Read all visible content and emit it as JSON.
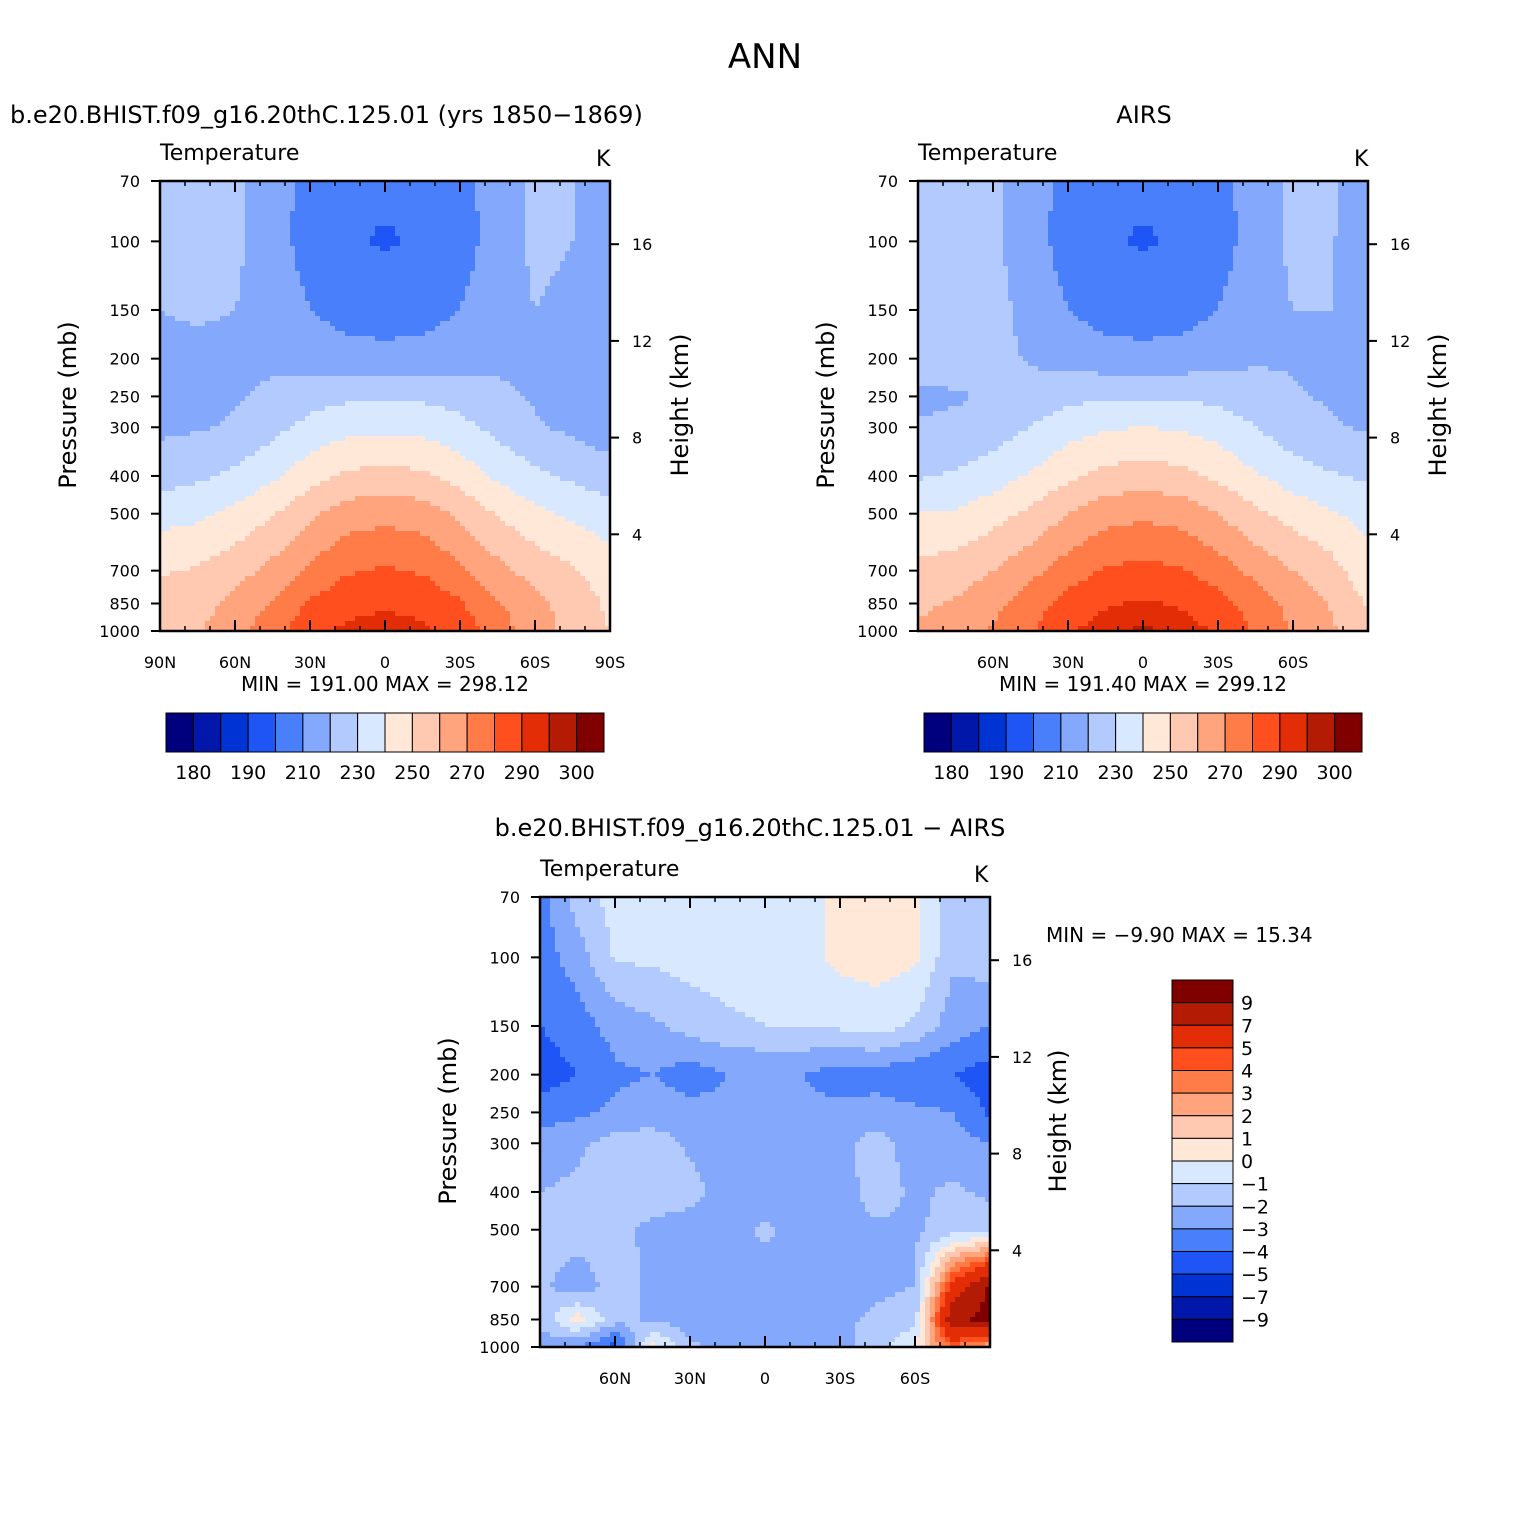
{
  "figure": {
    "title": "ANN"
  },
  "panels": [
    {
      "id": "model",
      "title": "b.e20.BHIST.f09_g16.20thC.125.01  (yrs  1850−1869)",
      "field_label": "Temperature",
      "units_label": "K",
      "y_label": "Pressure  (mb)",
      "y2_label": "Height  (km)",
      "minmax_text": "MIN  =  191.00    MAX  =  298.12"
    },
    {
      "id": "obs",
      "title": "AIRS",
      "field_label": "Temperature",
      "units_label": "K",
      "y_label": "Pressure  (mb)",
      "y2_label": "Height  (km)",
      "minmax_text": "MIN  =  191.40    MAX  =  299.12"
    },
    {
      "id": "diff",
      "title": "b.e20.BHIST.f09_g16.20thC.125.01  −  AIRS",
      "field_label": "Temperature",
      "units_label": "K",
      "y_label": "Pressure  (mb)",
      "y2_label": "Height  (km)",
      "minmax_text": "MIN  =    −9.90    MAX  =    15.34"
    }
  ],
  "chart_data": [
    {
      "type": "heatmap",
      "title": "b.e20.BHIST.f09_g16.20thC.125.01  (yrs  1850−1869)",
      "xlabel": "",
      "ylabel": "Pressure  (mb)",
      "y2label": "Height  (km)",
      "xlim": [
        90,
        -90
      ],
      "x_ticks": [
        90,
        60,
        30,
        0,
        -30,
        -60,
        -90
      ],
      "x_tick_labels": [
        "90N",
        "60N",
        "30N",
        "0",
        "30S",
        "60S",
        "90S"
      ],
      "ylim": [
        1000,
        70
      ],
      "y_scale": "log",
      "y_ticks": [
        70,
        100,
        150,
        200,
        250,
        300,
        400,
        500,
        700,
        850,
        1000
      ],
      "y2_ticks": [
        4,
        8,
        12,
        16
      ],
      "units": "K",
      "contour_levels": [
        180,
        185,
        190,
        200,
        210,
        220,
        230,
        240,
        250,
        260,
        270,
        280,
        290,
        295,
        300
      ],
      "min": 191.0,
      "max": 298.12,
      "colorbar_labels": [
        "180",
        "190",
        "210",
        "230",
        "250",
        "270",
        "290",
        "300"
      ],
      "colors": [
        "#00007f",
        "#0017a9",
        "#0033d4",
        "#1f55f5",
        "#4a7ffb",
        "#84a8fb",
        "#b3caff",
        "#d8e8ff",
        "#ffe8d8",
        "#ffc8b0",
        "#ffa47c",
        "#ff7b48",
        "#ff4f1e",
        "#e32d06",
        "#b41b05",
        "#800000"
      ],
      "x_grid": [
        90,
        75,
        60,
        45,
        30,
        15,
        0,
        -15,
        -30,
        -45,
        -60,
        -75,
        -90
      ],
      "y_grid": [
        70,
        100,
        150,
        200,
        250,
        300,
        400,
        500,
        700,
        850,
        1000
      ],
      "z": [
        [
          222,
          222,
          222,
          214,
          207,
          203,
          202,
          203,
          207,
          214,
          222,
          220,
          212
        ],
        [
          222,
          222,
          222,
          214,
          206,
          201,
          199,
          201,
          206,
          214,
          222,
          220,
          212
        ],
        [
          220,
          221,
          220,
          216,
          210,
          206,
          205,
          206,
          210,
          216,
          220,
          218,
          212
        ],
        [
          218,
          218,
          218,
          218,
          216,
          214,
          213,
          214,
          216,
          218,
          218,
          216,
          212
        ],
        [
          217,
          218,
          219,
          222,
          226,
          228,
          228,
          228,
          226,
          222,
          219,
          216,
          212
        ],
        [
          218,
          219,
          221,
          227,
          233,
          237,
          238,
          237,
          233,
          227,
          221,
          218,
          214
        ],
        [
          226,
          228,
          232,
          238,
          246,
          252,
          253,
          252,
          246,
          238,
          232,
          228,
          225
        ],
        [
          236,
          238,
          243,
          249,
          258,
          265,
          267,
          265,
          258,
          249,
          243,
          238,
          234
        ],
        [
          249,
          251,
          256,
          263,
          272,
          279,
          281,
          279,
          272,
          263,
          256,
          251,
          245
        ],
        [
          254,
          256,
          263,
          271,
          281,
          287,
          289,
          287,
          281,
          271,
          263,
          256,
          248
        ],
        [
          256,
          259,
          266,
          276,
          287,
          292,
          293,
          292,
          286,
          275,
          264,
          257,
          250
        ]
      ]
    },
    {
      "type": "heatmap",
      "title": "AIRS",
      "xlabel": "",
      "ylabel": "Pressure  (mb)",
      "y2label": "Height  (km)",
      "xlim": [
        90,
        -90
      ],
      "x_ticks": [
        60,
        30,
        0,
        -30,
        -60
      ],
      "x_tick_labels": [
        "60N",
        "30N",
        "0",
        "30S",
        "60S"
      ],
      "ylim": [
        1000,
        70
      ],
      "y_scale": "log",
      "y_ticks": [
        70,
        100,
        150,
        200,
        250,
        300,
        400,
        500,
        700,
        850,
        1000
      ],
      "y2_ticks": [
        4,
        8,
        12,
        16
      ],
      "units": "K",
      "contour_levels": [
        180,
        185,
        190,
        200,
        210,
        220,
        230,
        240,
        250,
        260,
        270,
        280,
        290,
        295,
        300
      ],
      "min": 191.4,
      "max": 299.12,
      "colorbar_labels": [
        "180",
        "190",
        "210",
        "230",
        "250",
        "270",
        "290",
        "300"
      ],
      "colors": [
        "#00007f",
        "#0017a9",
        "#0033d4",
        "#1f55f5",
        "#4a7ffb",
        "#84a8fb",
        "#b3caff",
        "#d8e8ff",
        "#ffe8d8",
        "#ffc8b0",
        "#ffa47c",
        "#ff7b48",
        "#ff4f1e",
        "#e32d06",
        "#b41b05",
        "#800000"
      ],
      "x_grid": [
        90,
        75,
        60,
        45,
        30,
        15,
        0,
        -15,
        -30,
        -45,
        -60,
        -75,
        -90
      ],
      "y_grid": [
        70,
        100,
        150,
        200,
        250,
        300,
        400,
        500,
        700,
        850,
        1000
      ],
      "z": [
        [
          222,
          222,
          222,
          214,
          207,
          203,
          202,
          203,
          207,
          214,
          222,
          222,
          213
        ],
        [
          224,
          224,
          222,
          214,
          206,
          201,
          199,
          201,
          206,
          214,
          222,
          221,
          213
        ],
        [
          226,
          226,
          224,
          216,
          210,
          206,
          205,
          206,
          210,
          216,
          220,
          220,
          215
        ],
        [
          224,
          225,
          223,
          219,
          216,
          214,
          213,
          214,
          216,
          219,
          219,
          218,
          216
        ],
        [
          218,
          219,
          221,
          224,
          227,
          229,
          229,
          229,
          227,
          224,
          221,
          219,
          217
        ],
        [
          221,
          222,
          225,
          230,
          236,
          239,
          240,
          239,
          236,
          230,
          224,
          221,
          219
        ],
        [
          229,
          231,
          235,
          241,
          248,
          253,
          255,
          253,
          248,
          241,
          235,
          231,
          228
        ],
        [
          240,
          241,
          246,
          252,
          260,
          266,
          268,
          266,
          260,
          252,
          246,
          241,
          237
        ],
        [
          253,
          255,
          260,
          267,
          275,
          281,
          283,
          281,
          275,
          267,
          260,
          254,
          243
        ],
        [
          258,
          261,
          267,
          275,
          284,
          289,
          291,
          289,
          284,
          275,
          267,
          259,
          249
        ],
        [
          262,
          264,
          271,
          279,
          289,
          294,
          296,
          294,
          289,
          279,
          269,
          262,
          252
        ]
      ]
    },
    {
      "type": "heatmap",
      "title": "b.e20.BHIST.f09_g16.20thC.125.01  −  AIRS",
      "xlabel": "",
      "ylabel": "Pressure  (mb)",
      "y2label": "Height  (km)",
      "xlim": [
        90,
        -90
      ],
      "x_ticks": [
        60,
        30,
        0,
        -30,
        -60
      ],
      "x_tick_labels": [
        "60N",
        "30N",
        "0",
        "30S",
        "60S"
      ],
      "ylim": [
        1000,
        70
      ],
      "y_scale": "log",
      "y_ticks": [
        70,
        100,
        150,
        200,
        250,
        300,
        400,
        500,
        700,
        850,
        1000
      ],
      "y2_ticks": [
        4,
        8,
        12,
        16
      ],
      "units": "K",
      "contour_levels": [
        -9,
        -7,
        -5,
        -4,
        -3,
        -2,
        -1,
        0,
        1,
        2,
        3,
        4,
        5,
        7,
        9
      ],
      "min": -9.9,
      "max": 15.34,
      "colorbar_labels": [
        "9",
        "7",
        "5",
        "4",
        "3",
        "2",
        "1",
        "0",
        "−1",
        "−2",
        "−3",
        "−4",
        "−5",
        "−7",
        "−9"
      ],
      "colors": [
        "#00007f",
        "#0017a9",
        "#0033d4",
        "#1f55f5",
        "#4a7ffb",
        "#84a8fb",
        "#b3caff",
        "#d8e8ff",
        "#ffe8d8",
        "#ffc8b0",
        "#ffa47c",
        "#ff7b48",
        "#ff4f1e",
        "#e32d06",
        "#b41b05",
        "#800000"
      ],
      "x_grid": [
        90,
        75,
        60,
        45,
        30,
        15,
        0,
        -15,
        -30,
        -45,
        -60,
        -75,
        -90
      ],
      "y_grid": [
        70,
        100,
        150,
        200,
        250,
        300,
        400,
        500,
        700,
        850,
        1000
      ],
      "z": [
        [
          -3.5,
          -1.5,
          -0.6,
          -0.5,
          -0.5,
          -0.5,
          -0.5,
          -0.5,
          0.4,
          0.5,
          0.3,
          -1.5,
          -1.2
        ],
        [
          -3.5,
          -2.5,
          -0.9,
          -0.8,
          -0.6,
          -0.5,
          -0.5,
          -0.5,
          0.3,
          0.4,
          0.2,
          -1.8,
          -1.5
        ],
        [
          -4.0,
          -3.5,
          -2.6,
          -2.2,
          -1.6,
          -1.2,
          -1.0,
          -1.0,
          -0.8,
          -0.5,
          -1.2,
          -2.5,
          -3.0
        ],
        [
          -4.5,
          -4.0,
          -3.2,
          -3.0,
          -3.5,
          -3.0,
          -3.0,
          -3.0,
          -3.5,
          -3.5,
          -3.8,
          -4.0,
          -4.5
        ],
        [
          -3.5,
          -3.2,
          -2.8,
          -2.5,
          -2.6,
          -2.8,
          -2.8,
          -2.8,
          -2.7,
          -2.5,
          -2.8,
          -3.0,
          -4.2
        ],
        [
          -2.5,
          -2.2,
          -1.6,
          -1.5,
          -2.2,
          -2.6,
          -2.5,
          -2.6,
          -2.2,
          -1.6,
          -2.5,
          -2.6,
          -3.0
        ],
        [
          -2.0,
          -1.8,
          -1.5,
          -1.5,
          -1.6,
          -2.5,
          -2.6,
          -2.6,
          -2.5,
          -1.5,
          -2.2,
          -1.8,
          -2.2
        ],
        [
          -1.5,
          -1.5,
          -1.8,
          -2.2,
          -2.5,
          -2.5,
          -1.8,
          -2.4,
          -2.4,
          -2.2,
          -2.2,
          -1.5,
          -1.5
        ],
        [
          -1.8,
          -2.6,
          -1.5,
          -2.2,
          -2.5,
          -2.6,
          -2.5,
          -2.6,
          -2.5,
          -2.2,
          -2.0,
          5.5,
          9.5
        ],
        [
          -1.8,
          0.5,
          -1.6,
          -2.2,
          -2.5,
          -2.6,
          -2.5,
          -2.6,
          -2.2,
          -1.8,
          -1.5,
          8.5,
          9.5
        ],
        [
          -2.5,
          -3.0,
          -4.5,
          0.5,
          -1.8,
          -2.5,
          -2.5,
          -2.5,
          -2.2,
          -1.6,
          0.2,
          4.0,
          2.0
        ]
      ]
    }
  ]
}
